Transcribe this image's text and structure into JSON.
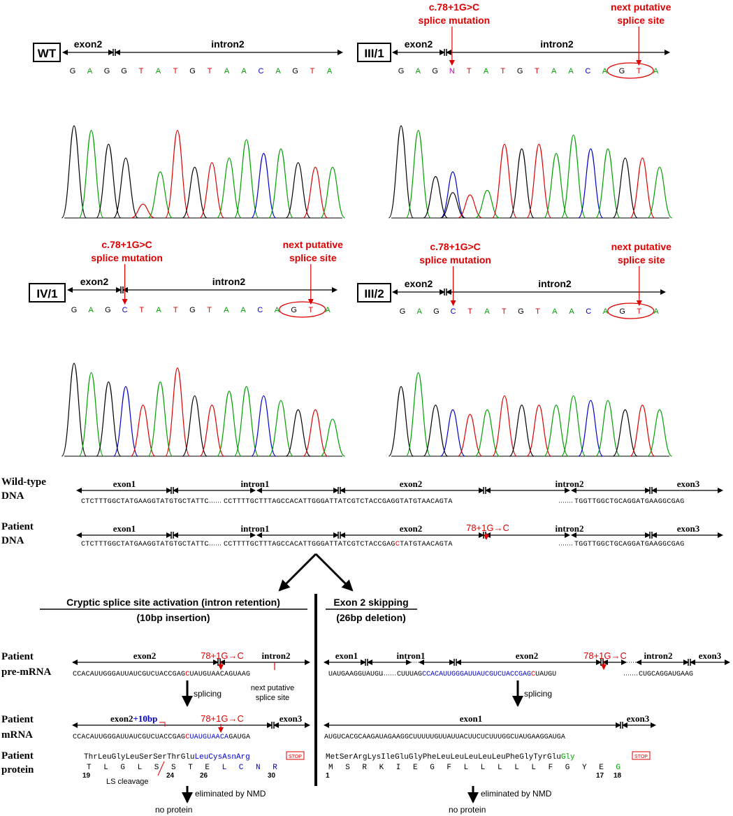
{
  "colors": {
    "A": "#00a000",
    "C": "#0000cc",
    "G": "#000000",
    "T": "#dd0000",
    "N": "#cc00cc",
    "red": "#dd0000",
    "blue": "#0000cc",
    "green": "#00a000"
  },
  "panels": [
    {
      "id": "WT",
      "label": "WT",
      "exon_label": "exon2",
      "intron_label": "intron2",
      "bases": "GAGGTATGTAACAGTA",
      "mutation": "",
      "next_site": "",
      "circled": false,
      "trace": [
        [
          0,
          2
        ],
        [
          1,
          1.9
        ],
        [
          2,
          1.6
        ],
        [
          3,
          1.3
        ],
        [
          4,
          0.3
        ],
        [
          5,
          1.0
        ],
        [
          6,
          1.9
        ],
        [
          7,
          1.1
        ],
        [
          8,
          1.2
        ],
        [
          9,
          1.3
        ],
        [
          10,
          1.7
        ],
        [
          11,
          1.4
        ],
        [
          12,
          1.5
        ],
        [
          13,
          1.2
        ],
        [
          14,
          1.1
        ],
        [
          15,
          1.1
        ]
      ]
    },
    {
      "id": "III/1",
      "label": "III/1",
      "exon_label": "exon2",
      "intron_label": "intron2",
      "bases": "GAGNTATGTAACAGTA",
      "mutation": "c.78+1G>C\nsplice mutation",
      "next_site": "next putative\nsplice site",
      "circled": true,
      "trace": [
        [
          0,
          2
        ],
        [
          1,
          1.9
        ],
        [
          2,
          0.9
        ],
        [
          3,
          1.0
        ],
        [
          4,
          0.5
        ],
        [
          5,
          0.6
        ],
        [
          6,
          1.6
        ],
        [
          7,
          1.5
        ],
        [
          8,
          1.6
        ],
        [
          9,
          1.4
        ],
        [
          10,
          1.8
        ],
        [
          11,
          1.5
        ],
        [
          12,
          1.5
        ],
        [
          13,
          1.3
        ],
        [
          14,
          1.3
        ],
        [
          15,
          1.1
        ]
      ]
    },
    {
      "id": "IV/1",
      "label": "IV/1",
      "exon_label": "exon2",
      "intron_label": "intron2",
      "bases": "GAGCTATGTAACAGTA",
      "mutation": "c.78+1G>C\nsplice mutation",
      "next_site": "next putative\nsplice site",
      "circled": true,
      "trace": [
        [
          0,
          2
        ],
        [
          1,
          1.8
        ],
        [
          2,
          1.6
        ],
        [
          3,
          1.5
        ],
        [
          4,
          1.1
        ],
        [
          5,
          1.6
        ],
        [
          6,
          1.9
        ],
        [
          7,
          1.3
        ],
        [
          8,
          1.1
        ],
        [
          9,
          1.4
        ],
        [
          10,
          1.5
        ],
        [
          11,
          1.3
        ],
        [
          12,
          1.2
        ],
        [
          13,
          1.0
        ],
        [
          14,
          1.0
        ],
        [
          15,
          0.8
        ]
      ]
    },
    {
      "id": "III/2",
      "label": "III/2",
      "exon_label": "exon2",
      "intron_label": "intron2",
      "bases": "GAGCTATGTAACAGTA",
      "mutation": "c.78+1G>C\nsplice mutation",
      "next_site": "next putative\nsplice site",
      "circled": true,
      "trace": [
        [
          0,
          1.5
        ],
        [
          1,
          1.8
        ],
        [
          2,
          1.1
        ],
        [
          3,
          1.0
        ],
        [
          4,
          0.9
        ],
        [
          5,
          1.0
        ],
        [
          6,
          1.3
        ],
        [
          7,
          1.1
        ],
        [
          8,
          1.1
        ],
        [
          9,
          1.1
        ],
        [
          10,
          1.3
        ],
        [
          11,
          1.2
        ],
        [
          12,
          1.2
        ],
        [
          13,
          1.0
        ],
        [
          14,
          1.1
        ],
        [
          15,
          1.0
        ]
      ]
    }
  ],
  "dna": {
    "wt_label": [
      "Wild-type",
      "DNA"
    ],
    "pt_label": [
      "Patient",
      "DNA"
    ],
    "region_labels": [
      "exon1",
      "intron1",
      "exon2",
      "intron2",
      "exon3"
    ],
    "seq1": "CTCTTTGGCTATGAAGGTATGTGCTATTC",
    "seq2": "CCTTTTGCTTTAGCCACATTGGGATTATCGTCTACCGAG",
    "seq2_wt_tail": "GTATGTAACAGTA",
    "seq2_pt_mut": "C",
    "seq2_pt_tail": "TATGTAACAGTA",
    "seq3": "TGGTTGGCTGCAGGATGAAGGCGAG",
    "mut_label": "78+1G→C"
  },
  "left": {
    "title": "Cryptic splice site activation (intron retention)",
    "subtitle": "(10bp insertion)",
    "premrna_label": [
      "Patient",
      "pre-mRNA"
    ],
    "premrna_regions": [
      "exon2",
      "intron2"
    ],
    "premrna_seq_a": "CCACAUUGGGAUUAUCGUCUACCGAG",
    "premrna_seq_mut": "C",
    "premrna_seq_b": "UAUGUAACAGUAAG",
    "mut_label": "78+1G→C",
    "next_site": [
      "next putative",
      "splice site"
    ],
    "splicing": "splicing",
    "mrna_label": [
      "Patient",
      "mRNA"
    ],
    "mrna_exon_a": "exon2",
    "mrna_plus": "+",
    "mrna_insert": "10bp",
    "mrna_exon3": "exon3",
    "mrna_seq_a": "CCACAUUGGGAUUAUCGUCUACCGAG",
    "mrna_seq_ins": "CUAUGUAACA",
    "mrna_seq_b": "GAUGA",
    "protein_label": [
      "Patient",
      "protein"
    ],
    "aa3": [
      "Thr",
      "Leu",
      "Gly",
      "Leu",
      "Ser",
      "Ser",
      "Thr",
      "Glu",
      "Leu",
      "Cys",
      "Asn",
      "Arg"
    ],
    "aa1": [
      "T",
      "L",
      "G",
      "L",
      "S",
      "S",
      "T",
      "E",
      "L",
      "C",
      "N",
      "R"
    ],
    "aa_nums": [
      "19",
      "24",
      "26",
      "30"
    ],
    "stop": "STOP",
    "ls": "LS cleavage",
    "nmd": "eliminated by NMD",
    "no_protein": "no protein"
  },
  "right": {
    "title": "Exon 2 skipping",
    "subtitle": "(26bp deletion)",
    "premrna_regions": [
      "exon1",
      "intron1",
      "exon2",
      "intron2",
      "exon3"
    ],
    "premrna_seq_1": "UAUGAAGGUAUGU",
    "premrna_seq_2": "CUUUAG",
    "premrna_seq_exon": "CCACAUUGGGAUUAUCGUCUACCGAG",
    "premrna_seq_mut": "C",
    "premrna_seq_3": "UAUGU",
    "premrna_seq_4": "CUGCAGGAUGAAG",
    "mut_label": "78+1G→C",
    "splicing": "splicing",
    "mrna_exon1": "exon1",
    "mrna_exon3": "exon3",
    "mrna_seq": "AUGUCACGCAAGAUAGAAGGCUUUUUGUUAUUACUUCUCUUUGGCUAUGAAGGAUGA",
    "aa3": [
      "Met",
      "Ser",
      "Arg",
      "Lys",
      "Ile",
      "Glu",
      "Gly",
      "Phe",
      "Leu",
      "Leu",
      "Leu",
      "Leu",
      "Leu",
      "Phe",
      "Gly",
      "Tyr",
      "Glu",
      "Gly"
    ],
    "aa1": [
      "M",
      "S",
      "R",
      "K",
      "I",
      "E",
      "G",
      "F",
      "L",
      "L",
      "L",
      "L",
      "L",
      "F",
      "G",
      "Y",
      "E",
      "G"
    ],
    "aa_nums": [
      "1",
      "17",
      "18"
    ],
    "stop": "STOP",
    "nmd": "eliminated by NMD",
    "no_protein": "no protein"
  }
}
